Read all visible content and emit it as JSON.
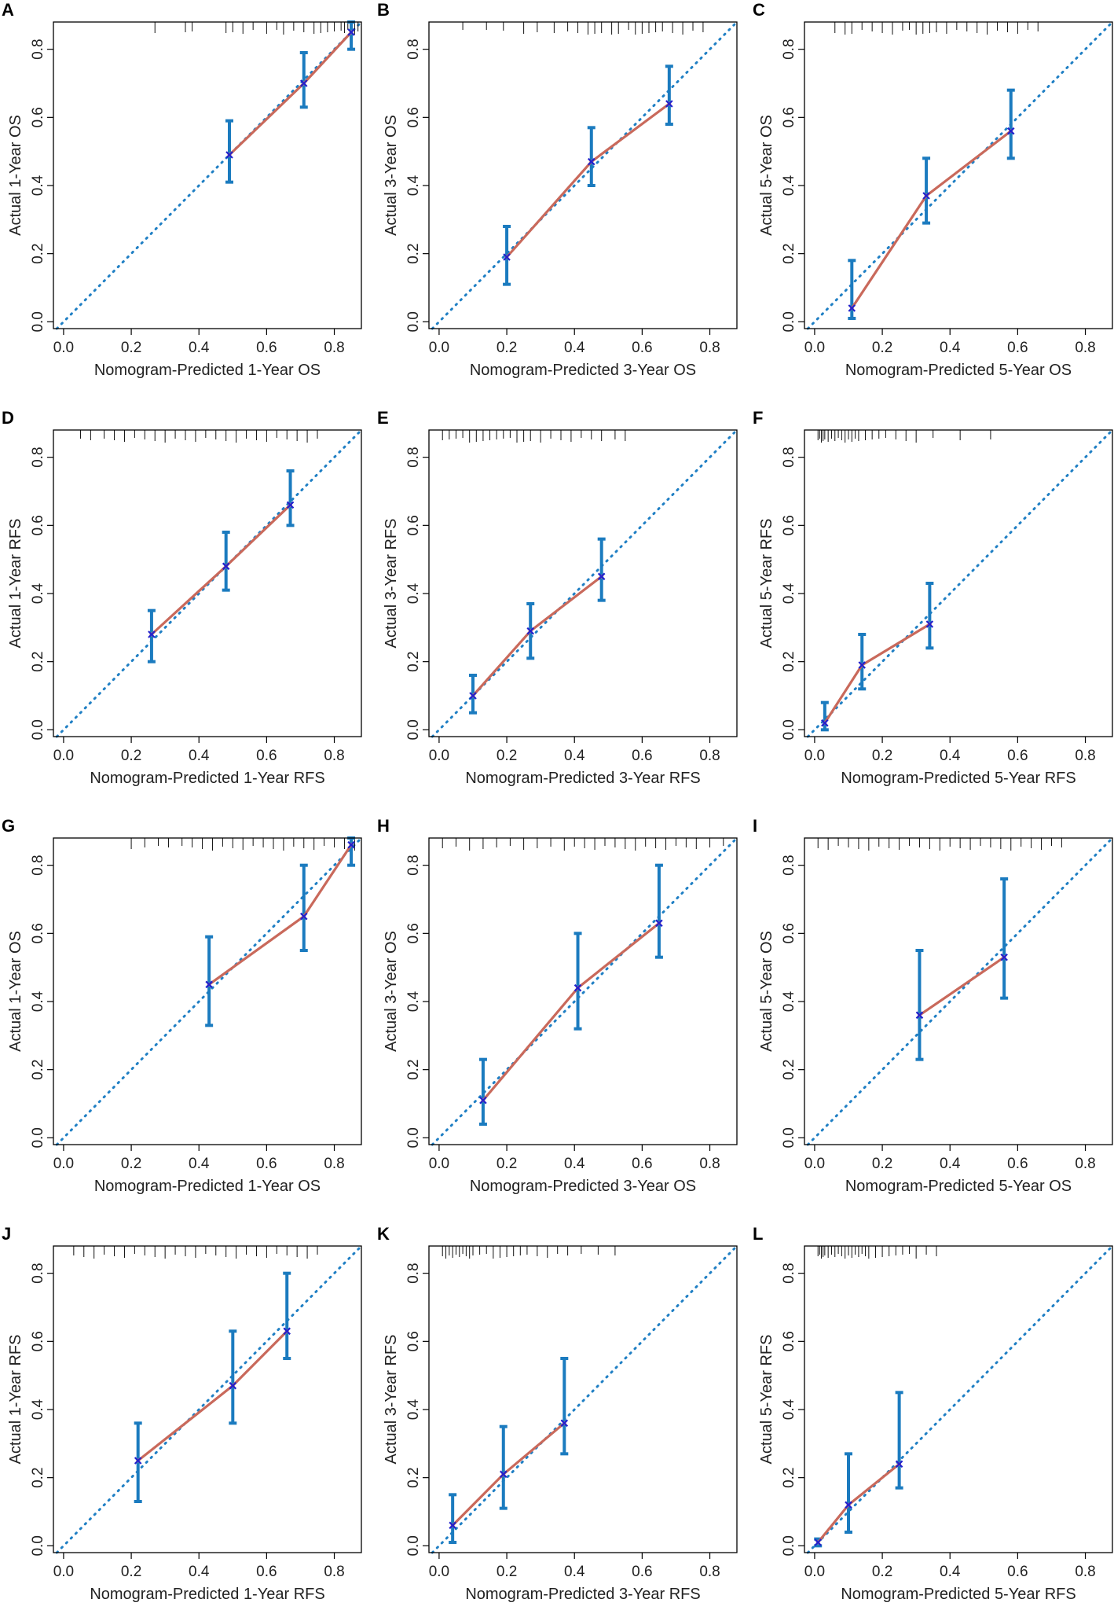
{
  "figure": {
    "axis_ticks": [
      "0.0",
      "0.2",
      "0.4",
      "0.6",
      "0.8"
    ],
    "colors": {
      "ideal_line": "#1f7fc4",
      "calibration_line": "#c9695b",
      "error_bars": "#1b7bbf",
      "observed_marker": "#2222cc"
    }
  },
  "chart_data": [
    {
      "panel": "A",
      "type": "line",
      "xlabel": "Nomogram-Predicted 1-Year OS",
      "ylabel": "Actual 1-Year OS",
      "xlim": [
        -0.03,
        0.88
      ],
      "ylim": [
        -0.02,
        0.88
      ],
      "points": [
        {
          "x": 0.49,
          "y": 0.49,
          "lo": 0.41,
          "hi": 0.59
        },
        {
          "x": 0.71,
          "y": 0.7,
          "lo": 0.63,
          "hi": 0.79
        },
        {
          "x": 0.85,
          "y": 0.85,
          "lo": 0.8,
          "hi": 0.88
        }
      ],
      "rug": [
        0.27,
        0.36,
        0.38,
        0.48,
        0.5,
        0.53,
        0.56,
        0.6,
        0.63,
        0.65,
        0.68,
        0.71,
        0.74,
        0.76,
        0.78,
        0.8,
        0.82,
        0.83,
        0.84,
        0.85,
        0.86,
        0.87,
        0.88
      ]
    },
    {
      "panel": "B",
      "type": "line",
      "xlabel": "Nomogram-Predicted 3-Year OS",
      "ylabel": "Actual 3-Year OS",
      "xlim": [
        -0.03,
        0.88
      ],
      "ylim": [
        -0.02,
        0.88
      ],
      "points": [
        {
          "x": 0.2,
          "y": 0.19,
          "lo": 0.11,
          "hi": 0.28
        },
        {
          "x": 0.45,
          "y": 0.47,
          "lo": 0.4,
          "hi": 0.57
        },
        {
          "x": 0.68,
          "y": 0.64,
          "lo": 0.58,
          "hi": 0.75
        }
      ],
      "rug": [
        0.07,
        0.14,
        0.19,
        0.25,
        0.29,
        0.34,
        0.38,
        0.41,
        0.44,
        0.46,
        0.48,
        0.51,
        0.53,
        0.56,
        0.58,
        0.6,
        0.62,
        0.64,
        0.66,
        0.69,
        0.72,
        0.75,
        0.78
      ]
    },
    {
      "panel": "C",
      "type": "line",
      "xlabel": "Nomogram-Predicted 5-Year OS",
      "ylabel": "Actual 5-Year OS",
      "xlim": [
        -0.03,
        0.88
      ],
      "ylim": [
        -0.02,
        0.88
      ],
      "points": [
        {
          "x": 0.11,
          "y": 0.04,
          "lo": 0.01,
          "hi": 0.18
        },
        {
          "x": 0.33,
          "y": 0.37,
          "lo": 0.29,
          "hi": 0.48
        },
        {
          "x": 0.58,
          "y": 0.56,
          "lo": 0.48,
          "hi": 0.68
        }
      ],
      "rug": [
        0.06,
        0.09,
        0.11,
        0.14,
        0.17,
        0.2,
        0.23,
        0.26,
        0.28,
        0.3,
        0.32,
        0.34,
        0.36,
        0.39,
        0.42,
        0.45,
        0.48,
        0.51,
        0.54,
        0.57,
        0.6,
        0.63,
        0.66
      ]
    },
    {
      "panel": "D",
      "type": "line",
      "xlabel": "Nomogram-Predicted 1-Year RFS",
      "ylabel": "Actual 1-Year RFS",
      "xlim": [
        -0.03,
        0.88
      ],
      "ylim": [
        -0.02,
        0.88
      ],
      "points": [
        {
          "x": 0.26,
          "y": 0.28,
          "lo": 0.2,
          "hi": 0.35
        },
        {
          "x": 0.48,
          "y": 0.48,
          "lo": 0.41,
          "hi": 0.58
        },
        {
          "x": 0.67,
          "y": 0.66,
          "lo": 0.6,
          "hi": 0.76
        }
      ],
      "rug": [
        0.05,
        0.08,
        0.12,
        0.15,
        0.18,
        0.21,
        0.24,
        0.27,
        0.3,
        0.33,
        0.36,
        0.39,
        0.42,
        0.45,
        0.48,
        0.51,
        0.54,
        0.57,
        0.6,
        0.63,
        0.66,
        0.69,
        0.72,
        0.75
      ]
    },
    {
      "panel": "E",
      "type": "line",
      "xlabel": "Nomogram-Predicted 3-Year RFS",
      "ylabel": "Actual 3-Year RFS",
      "xlim": [
        -0.03,
        0.88
      ],
      "ylim": [
        -0.02,
        0.88
      ],
      "points": [
        {
          "x": 0.1,
          "y": 0.1,
          "lo": 0.05,
          "hi": 0.16
        },
        {
          "x": 0.27,
          "y": 0.29,
          "lo": 0.21,
          "hi": 0.37
        },
        {
          "x": 0.48,
          "y": 0.45,
          "lo": 0.38,
          "hi": 0.56
        }
      ],
      "rug": [
        0.01,
        0.03,
        0.05,
        0.07,
        0.09,
        0.11,
        0.13,
        0.15,
        0.17,
        0.19,
        0.21,
        0.23,
        0.25,
        0.27,
        0.3,
        0.33,
        0.36,
        0.39,
        0.42,
        0.45,
        0.48,
        0.52,
        0.55
      ]
    },
    {
      "panel": "F",
      "type": "line",
      "xlabel": "Nomogram-Predicted 5-Year RFS",
      "ylabel": "Actual 5-Year RFS",
      "xlim": [
        -0.03,
        0.88
      ],
      "ylim": [
        -0.02,
        0.88
      ],
      "points": [
        {
          "x": 0.03,
          "y": 0.02,
          "lo": 0.0,
          "hi": 0.08
        },
        {
          "x": 0.14,
          "y": 0.19,
          "lo": 0.12,
          "hi": 0.28
        },
        {
          "x": 0.34,
          "y": 0.31,
          "lo": 0.24,
          "hi": 0.43
        }
      ],
      "rug": [
        0.01,
        0.015,
        0.02,
        0.025,
        0.03,
        0.04,
        0.05,
        0.06,
        0.07,
        0.08,
        0.09,
        0.1,
        0.11,
        0.12,
        0.13,
        0.15,
        0.17,
        0.19,
        0.21,
        0.24,
        0.27,
        0.3,
        0.35,
        0.43,
        0.52
      ]
    },
    {
      "panel": "G",
      "type": "line",
      "xlabel": "Nomogram-Predicted 1-Year OS",
      "ylabel": "Actual 1-Year OS",
      "xlim": [
        -0.03,
        0.88
      ],
      "ylim": [
        -0.02,
        0.88
      ],
      "points": [
        {
          "x": 0.43,
          "y": 0.45,
          "lo": 0.33,
          "hi": 0.59
        },
        {
          "x": 0.71,
          "y": 0.65,
          "lo": 0.55,
          "hi": 0.8
        },
        {
          "x": 0.85,
          "y": 0.86,
          "lo": 0.8,
          "hi": 0.88
        }
      ],
      "rug": [
        0.2,
        0.24,
        0.28,
        0.31,
        0.35,
        0.38,
        0.41,
        0.44,
        0.47,
        0.5,
        0.53,
        0.56,
        0.59,
        0.62,
        0.65,
        0.68,
        0.71,
        0.74,
        0.77,
        0.8,
        0.83,
        0.86
      ]
    },
    {
      "panel": "H",
      "type": "line",
      "xlabel": "Nomogram-Predicted 3-Year OS",
      "ylabel": "Actual 3-Year OS",
      "xlim": [
        -0.03,
        0.88
      ],
      "ylim": [
        -0.02,
        0.88
      ],
      "points": [
        {
          "x": 0.13,
          "y": 0.11,
          "lo": 0.04,
          "hi": 0.23
        },
        {
          "x": 0.41,
          "y": 0.44,
          "lo": 0.32,
          "hi": 0.6
        },
        {
          "x": 0.65,
          "y": 0.63,
          "lo": 0.53,
          "hi": 0.8
        }
      ],
      "rug": [
        0.01,
        0.05,
        0.09,
        0.13,
        0.17,
        0.21,
        0.25,
        0.29,
        0.33,
        0.37,
        0.4,
        0.43,
        0.46,
        0.49,
        0.52,
        0.55,
        0.58,
        0.61,
        0.64,
        0.67,
        0.7,
        0.73,
        0.76,
        0.8,
        0.84
      ]
    },
    {
      "panel": "I",
      "type": "line",
      "xlabel": "Nomogram-Predicted 5-Year OS",
      "ylabel": "Actual 5-Year OS",
      "xlim": [
        -0.03,
        0.88
      ],
      "ylim": [
        -0.02,
        0.88
      ],
      "points": [
        {
          "x": 0.31,
          "y": 0.36,
          "lo": 0.23,
          "hi": 0.55
        },
        {
          "x": 0.56,
          "y": 0.53,
          "lo": 0.41,
          "hi": 0.76
        }
      ],
      "rug": [
        0.01,
        0.04,
        0.07,
        0.1,
        0.13,
        0.16,
        0.19,
        0.22,
        0.25,
        0.28,
        0.31,
        0.34,
        0.37,
        0.4,
        0.43,
        0.46,
        0.49,
        0.52,
        0.55,
        0.58,
        0.61,
        0.64,
        0.67,
        0.7,
        0.73
      ]
    },
    {
      "panel": "J",
      "type": "line",
      "xlabel": "Nomogram-Predicted 1-Year RFS",
      "ylabel": "Actual 1-Year RFS",
      "xlim": [
        -0.03,
        0.88
      ],
      "ylim": [
        -0.02,
        0.88
      ],
      "points": [
        {
          "x": 0.22,
          "y": 0.25,
          "lo": 0.13,
          "hi": 0.36
        },
        {
          "x": 0.5,
          "y": 0.47,
          "lo": 0.36,
          "hi": 0.63
        },
        {
          "x": 0.66,
          "y": 0.63,
          "lo": 0.55,
          "hi": 0.8
        }
      ],
      "rug": [
        0.03,
        0.06,
        0.09,
        0.12,
        0.15,
        0.18,
        0.21,
        0.24,
        0.27,
        0.3,
        0.33,
        0.36,
        0.39,
        0.42,
        0.45,
        0.48,
        0.51,
        0.54,
        0.57,
        0.6,
        0.63,
        0.66,
        0.69,
        0.72,
        0.75
      ]
    },
    {
      "panel": "K",
      "type": "line",
      "xlabel": "Nomogram-Predicted 3-Year RFS",
      "ylabel": "Actual 3-Year RFS",
      "xlim": [
        -0.03,
        0.88
      ],
      "ylim": [
        -0.02,
        0.88
      ],
      "points": [
        {
          "x": 0.04,
          "y": 0.06,
          "lo": 0.01,
          "hi": 0.15
        },
        {
          "x": 0.19,
          "y": 0.21,
          "lo": 0.11,
          "hi": 0.35
        },
        {
          "x": 0.37,
          "y": 0.36,
          "lo": 0.27,
          "hi": 0.55
        }
      ],
      "rug": [
        0.01,
        0.02,
        0.03,
        0.04,
        0.05,
        0.06,
        0.07,
        0.08,
        0.09,
        0.1,
        0.12,
        0.14,
        0.16,
        0.18,
        0.2,
        0.22,
        0.24,
        0.26,
        0.29,
        0.32,
        0.35,
        0.38,
        0.42,
        0.47,
        0.52
      ]
    },
    {
      "panel": "L",
      "type": "line",
      "xlabel": "Nomogram-Predicted 5-Year RFS",
      "ylabel": "Actual 5-Year RFS",
      "xlim": [
        -0.03,
        0.88
      ],
      "ylim": [
        -0.02,
        0.88
      ],
      "points": [
        {
          "x": 0.01,
          "y": 0.01,
          "lo": 0.0,
          "hi": 0.02
        },
        {
          "x": 0.1,
          "y": 0.12,
          "lo": 0.04,
          "hi": 0.27
        },
        {
          "x": 0.25,
          "y": 0.24,
          "lo": 0.17,
          "hi": 0.45
        }
      ],
      "rug": [
        0.01,
        0.015,
        0.02,
        0.025,
        0.03,
        0.04,
        0.05,
        0.06,
        0.07,
        0.08,
        0.09,
        0.1,
        0.11,
        0.12,
        0.13,
        0.14,
        0.15,
        0.16,
        0.18,
        0.2,
        0.22,
        0.24,
        0.26,
        0.28,
        0.3,
        0.33,
        0.36
      ]
    }
  ]
}
